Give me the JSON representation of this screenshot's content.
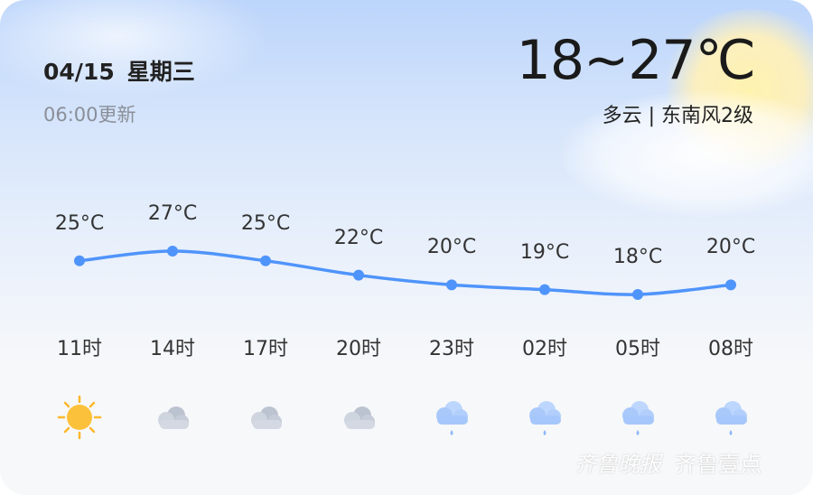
{
  "header": {
    "date": "04/15",
    "weekday": "星期三",
    "update_time": "06:00更新",
    "temp_range": "18~27℃",
    "condition": "多云",
    "wind": "东南风2级",
    "separator": "|"
  },
  "hourly": [
    {
      "time": "11时",
      "temp": 25,
      "temp_label": "25°C",
      "icon": "sunny-icon"
    },
    {
      "time": "14时",
      "temp": 27,
      "temp_label": "27°C",
      "icon": "cloudy-icon"
    },
    {
      "time": "17时",
      "temp": 25,
      "temp_label": "25°C",
      "icon": "cloudy-icon"
    },
    {
      "time": "20时",
      "temp": 22,
      "temp_label": "22°C",
      "icon": "cloudy-icon"
    },
    {
      "time": "23时",
      "temp": 20,
      "temp_label": "20°C",
      "icon": "light-rain-icon"
    },
    {
      "time": "02时",
      "temp": 19,
      "temp_label": "19°C",
      "icon": "light-rain-icon"
    },
    {
      "time": "05时",
      "temp": 18,
      "temp_label": "18°C",
      "icon": "light-rain-icon"
    },
    {
      "time": "08时",
      "temp": 20,
      "temp_label": "20°C",
      "icon": "light-rain-icon"
    }
  ],
  "colors": {
    "line": "#4f94fb",
    "point": "#4f94fb"
  },
  "watermark": {
    "left": "齐鲁晚报",
    "right": "齐鲁壹点"
  }
}
